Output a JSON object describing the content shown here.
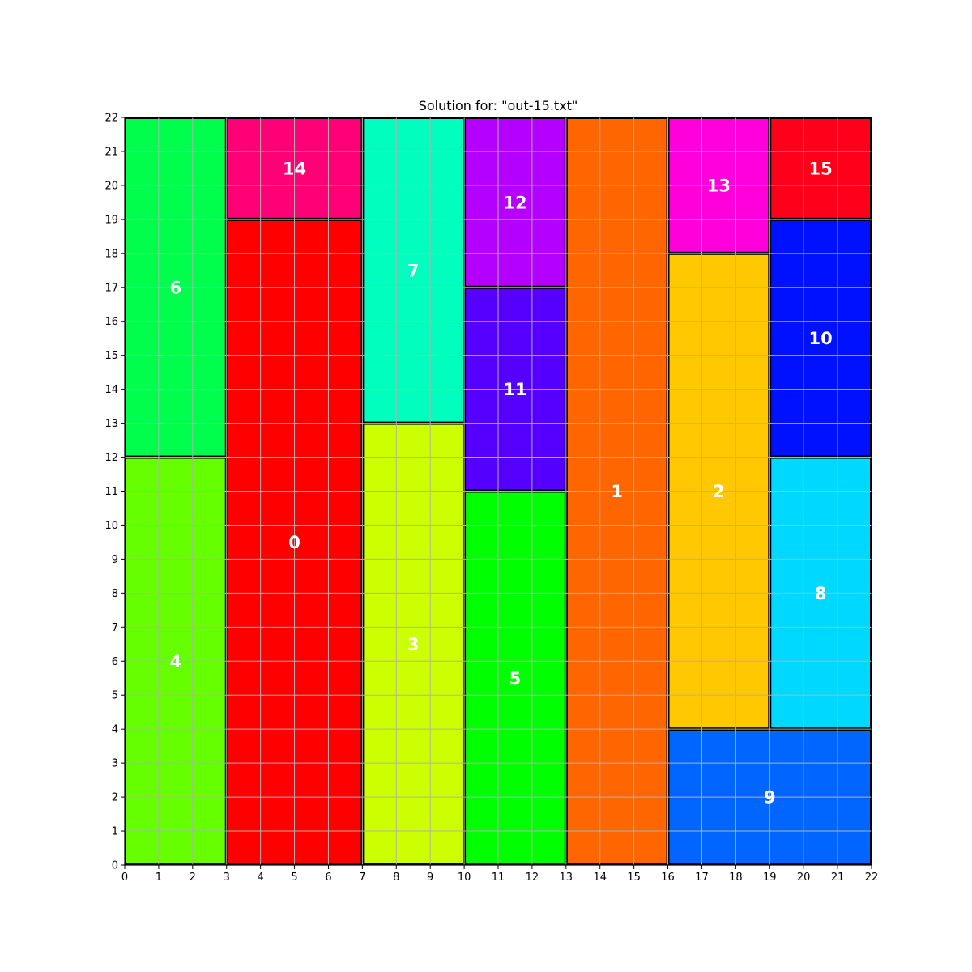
{
  "chart_data": {
    "type": "rectangle-packing",
    "title": "Solution for: \"out-15.txt\"",
    "xlim": [
      0,
      22
    ],
    "ylim": [
      0,
      22
    ],
    "grid": true,
    "x_ticks": [
      "0",
      "1",
      "2",
      "3",
      "4",
      "5",
      "6",
      "7",
      "8",
      "9",
      "10",
      "11",
      "12",
      "13",
      "14",
      "15",
      "16",
      "17",
      "18",
      "19",
      "20",
      "21",
      "22"
    ],
    "y_ticks": [
      "0",
      "1",
      "2",
      "3",
      "4",
      "5",
      "6",
      "7",
      "8",
      "9",
      "10",
      "11",
      "12",
      "13",
      "14",
      "15",
      "16",
      "17",
      "18",
      "19",
      "20",
      "21",
      "22"
    ],
    "rectangles": [
      {
        "label": "0",
        "x": 3,
        "y": 0,
        "w": 4,
        "h": 19,
        "color": "#ff0000"
      },
      {
        "label": "1",
        "x": 13,
        "y": 0,
        "w": 3,
        "h": 22,
        "color": "#ff6600"
      },
      {
        "label": "2",
        "x": 16,
        "y": 4,
        "w": 3,
        "h": 14,
        "color": "#ffc800"
      },
      {
        "label": "3",
        "x": 7,
        "y": 0,
        "w": 3,
        "h": 13,
        "color": "#ccff00"
      },
      {
        "label": "4",
        "x": 0,
        "y": 0,
        "w": 3,
        "h": 12,
        "color": "#66ff00"
      },
      {
        "label": "5",
        "x": 10,
        "y": 0,
        "w": 3,
        "h": 11,
        "color": "#00ff00"
      },
      {
        "label": "6",
        "x": 0,
        "y": 12,
        "w": 3,
        "h": 10,
        "color": "#00ff4d"
      },
      {
        "label": "7",
        "x": 7,
        "y": 13,
        "w": 3,
        "h": 9,
        "color": "#00ffbf"
      },
      {
        "label": "8",
        "x": 19,
        "y": 4,
        "w": 3,
        "h": 8,
        "color": "#00d9ff"
      },
      {
        "label": "9",
        "x": 16,
        "y": 0,
        "w": 6,
        "h": 4,
        "color": "#0066ff"
      },
      {
        "label": "10",
        "x": 19,
        "y": 12,
        "w": 3,
        "h": 7,
        "color": "#0011ff"
      },
      {
        "label": "11",
        "x": 10,
        "y": 11,
        "w": 3,
        "h": 6,
        "color": "#5500ff"
      },
      {
        "label": "12",
        "x": 10,
        "y": 17,
        "w": 3,
        "h": 5,
        "color": "#b300ff"
      },
      {
        "label": "13",
        "x": 16,
        "y": 18,
        "w": 3,
        "h": 4,
        "color": "#ff00dd"
      },
      {
        "label": "14",
        "x": 3,
        "y": 19,
        "w": 4,
        "h": 3,
        "color": "#ff0077"
      },
      {
        "label": "15",
        "x": 19,
        "y": 19,
        "w": 3,
        "h": 3,
        "color": "#ff001a"
      }
    ]
  }
}
